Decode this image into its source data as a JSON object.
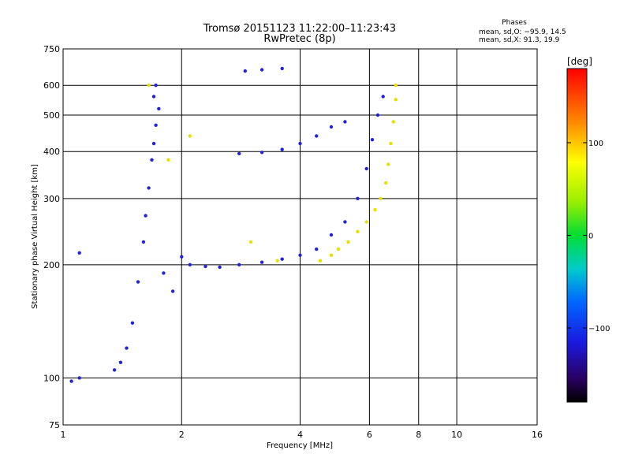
{
  "chart_data": {
    "type": "scatter",
    "title": "Tromsø 20151123 11:22:00–11:23:43",
    "subtitle": "RwPretec (8p)",
    "xlabel": "Frequency [MHz]",
    "ylabel": "Stationary phase Virtual Height [km]",
    "x_scale": "log2",
    "y_scale": "log",
    "xlim": [
      1,
      16
    ],
    "ylim": [
      75,
      750
    ],
    "x_ticks": [
      1,
      2,
      4,
      6,
      8,
      10,
      16
    ],
    "y_ticks": [
      75,
      100,
      200,
      300,
      400,
      500,
      600,
      750
    ],
    "grid": true,
    "phase_stats": {
      "title": "Phases",
      "line_o": "mean, sd,O: −95.9, 14.5",
      "line_x": "mean, sd,X:  91.3, 19.9"
    },
    "colorbar": {
      "label": "[deg]",
      "ticks": [
        "100",
        "0",
        "−100"
      ],
      "range": [
        -180,
        180
      ]
    },
    "series": [
      {
        "mode": "O",
        "phase_mean": -95.9,
        "phase_sd": 14.5,
        "color": "#2222dd",
        "points": [
          [
            1.05,
            98
          ],
          [
            1.1,
            100
          ],
          [
            1.1,
            215
          ],
          [
            1.35,
            105
          ],
          [
            1.4,
            110
          ],
          [
            1.45,
            120
          ],
          [
            1.5,
            140
          ],
          [
            1.55,
            180
          ],
          [
            1.6,
            230
          ],
          [
            1.62,
            270
          ],
          [
            1.65,
            320
          ],
          [
            1.68,
            380
          ],
          [
            1.7,
            420
          ],
          [
            1.72,
            470
          ],
          [
            1.75,
            520
          ],
          [
            1.7,
            560
          ],
          [
            1.72,
            600
          ],
          [
            1.8,
            190
          ],
          [
            1.9,
            170
          ],
          [
            2.0,
            210
          ],
          [
            2.1,
            200
          ],
          [
            2.3,
            198
          ],
          [
            2.5,
            197
          ],
          [
            2.8,
            200
          ],
          [
            3.2,
            203
          ],
          [
            3.6,
            207
          ],
          [
            4.0,
            212
          ],
          [
            4.4,
            220
          ],
          [
            4.8,
            240
          ],
          [
            5.2,
            260
          ],
          [
            5.6,
            300
          ],
          [
            5.9,
            360
          ],
          [
            6.1,
            430
          ],
          [
            6.3,
            500
          ],
          [
            6.5,
            560
          ],
          [
            2.8,
            395
          ],
          [
            3.2,
            398
          ],
          [
            3.6,
            405
          ],
          [
            4.0,
            420
          ],
          [
            4.4,
            440
          ],
          [
            4.8,
            465
          ],
          [
            5.2,
            480
          ],
          [
            2.9,
            655
          ],
          [
            3.2,
            660
          ],
          [
            3.6,
            665
          ]
        ]
      },
      {
        "mode": "X",
        "phase_mean": 91.3,
        "phase_sd": 19.9,
        "color": "#e8e000",
        "points": [
          [
            4.5,
            205
          ],
          [
            4.8,
            212
          ],
          [
            5.0,
            220
          ],
          [
            5.3,
            230
          ],
          [
            5.6,
            245
          ],
          [
            5.9,
            260
          ],
          [
            6.2,
            280
          ],
          [
            6.4,
            300
          ],
          [
            6.6,
            330
          ],
          [
            6.7,
            370
          ],
          [
            6.8,
            420
          ],
          [
            6.9,
            480
          ],
          [
            7.0,
            550
          ],
          [
            7.0,
            600
          ],
          [
            1.65,
            600
          ],
          [
            1.85,
            380
          ],
          [
            2.1,
            440
          ],
          [
            3.0,
            230
          ],
          [
            3.5,
            205
          ]
        ]
      }
    ]
  }
}
